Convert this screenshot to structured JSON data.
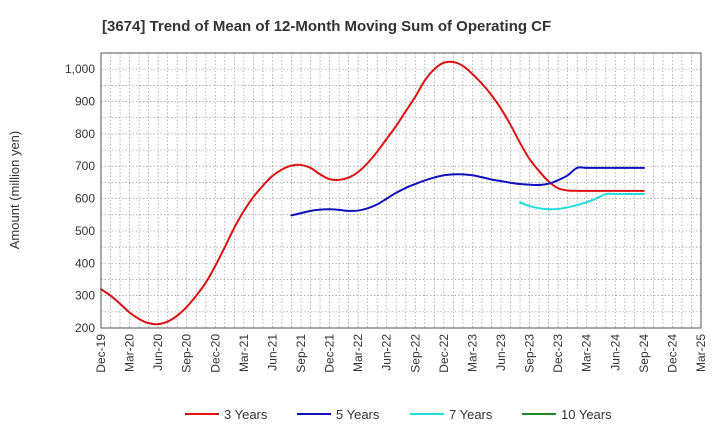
{
  "chart_data": {
    "type": "line",
    "title": "[3674]  Trend of Mean of 12-Month Moving Sum of Operating CF",
    "xlabel": "",
    "ylabel": "Amount (million yen)",
    "ylim": [
      200,
      1050
    ],
    "yticks": [
      200,
      300,
      400,
      500,
      600,
      700,
      800,
      900,
      1000
    ],
    "ytick_labels": [
      "200",
      "300",
      "400",
      "500",
      "600",
      "700",
      "800",
      "900",
      "1,000"
    ],
    "xticks": [
      "Dec-19",
      "Mar-20",
      "Jun-20",
      "Sep-20",
      "Dec-20",
      "Mar-21",
      "Jun-21",
      "Sep-21",
      "Dec-21",
      "Mar-22",
      "Jun-22",
      "Sep-22",
      "Dec-22",
      "Mar-23",
      "Jun-23",
      "Sep-23",
      "Dec-23",
      "Mar-24",
      "Jun-24",
      "Sep-24",
      "Dec-24",
      "Mar-25"
    ],
    "x_start": "Dec-19",
    "x_unit": "months since Dec-19",
    "grid": true,
    "legend_position": "bottom",
    "series": [
      {
        "name": "3 Years",
        "color": "#dd1111",
        "x": [
          0,
          1,
          2,
          3,
          4,
          5,
          6,
          7,
          8,
          9,
          10,
          11,
          12,
          13,
          14,
          15,
          16,
          17,
          18,
          19,
          20,
          21,
          22,
          23,
          24,
          25,
          26,
          27,
          28,
          29,
          30,
          31,
          32,
          33,
          34,
          35,
          36,
          37,
          38,
          39,
          40,
          41,
          42,
          43,
          44,
          45,
          46,
          47,
          48,
          49,
          50,
          51,
          52,
          53,
          54,
          55,
          56,
          57
        ],
        "values": [
          320,
          300,
          275,
          248,
          228,
          215,
          212,
          220,
          238,
          265,
          300,
          340,
          392,
          450,
          510,
          562,
          605,
          640,
          670,
          690,
          702,
          704,
          695,
          675,
          660,
          658,
          665,
          682,
          710,
          745,
          785,
          825,
          870,
          915,
          965,
          1000,
          1020,
          1022,
          1010,
          985,
          955,
          920,
          878,
          828,
          772,
          722,
          685,
          653,
          632,
          625,
          624,
          624,
          624,
          624,
          624,
          624,
          624,
          624
        ]
      },
      {
        "name": "5 Years",
        "color": "#1111bb",
        "x": [
          20,
          21,
          22,
          23,
          24,
          25,
          26,
          27,
          28,
          29,
          30,
          31,
          32,
          33,
          34,
          35,
          36,
          37,
          38,
          39,
          40,
          41,
          42,
          43,
          44,
          45,
          46,
          47,
          48,
          49,
          50,
          51,
          52,
          53,
          54,
          55,
          56,
          57
        ],
        "values": [
          548,
          555,
          562,
          566,
          567,
          565,
          562,
          563,
          570,
          582,
          600,
          618,
          633,
          645,
          656,
          665,
          672,
          675,
          675,
          672,
          666,
          659,
          654,
          649,
          645,
          643,
          642,
          646,
          657,
          672,
          695,
          695,
          695,
          695,
          695,
          695,
          695,
          695
        ]
      },
      {
        "name": "7 Years",
        "color": "#22dddd",
        "x": [
          44,
          45,
          46,
          47,
          48,
          49,
          50,
          51,
          52,
          53,
          54,
          55,
          56,
          57
        ],
        "values": [
          588,
          577,
          570,
          567,
          568,
          573,
          580,
          589,
          600,
          614,
          614,
          614,
          614,
          614
        ]
      },
      {
        "name": "10 Years",
        "color": "#228822",
        "x": [],
        "values": []
      }
    ]
  }
}
